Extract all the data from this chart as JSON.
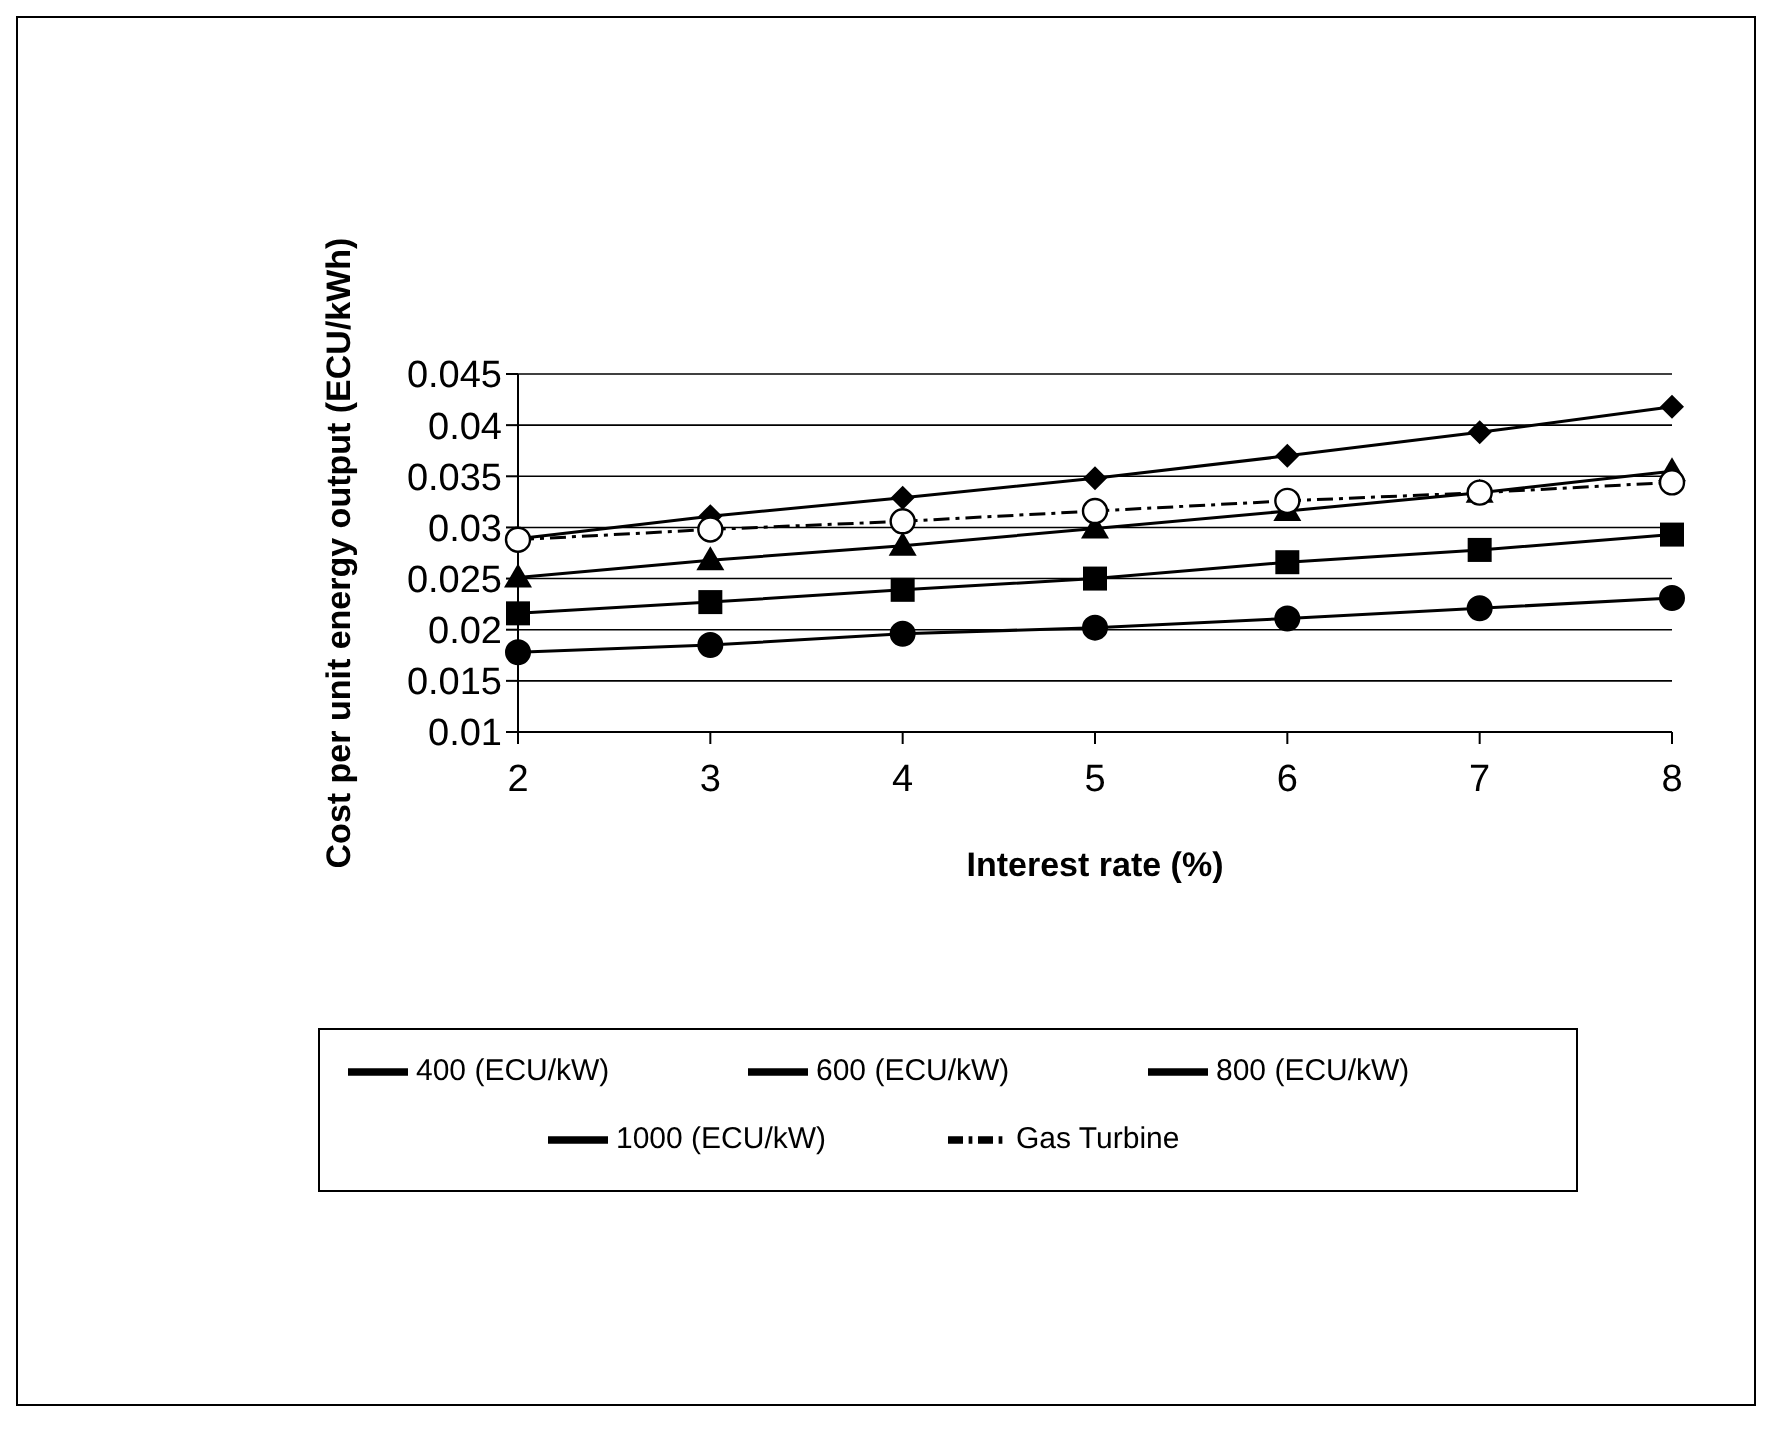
{
  "chart_data": {
    "type": "line",
    "xlabel": "Interest rate (%)",
    "ylabel": "Cost per unit energy output (ECU/kWh)",
    "categories": [
      "2",
      "3",
      "4",
      "5",
      "6",
      "7",
      "8"
    ],
    "series": [
      {
        "name": "400 (ECU/kW)",
        "color": "#000000",
        "marker": "circle",
        "line_style": "solid",
        "values": [
          0.0178,
          0.0185,
          0.0196,
          0.0202,
          0.0211,
          0.0221,
          0.0231
        ]
      },
      {
        "name": "600 (ECU/kW)",
        "color": "#000000",
        "marker": "square",
        "line_style": "solid",
        "values": [
          0.0216,
          0.0227,
          0.0239,
          0.025,
          0.0266,
          0.0278,
          0.0293
        ]
      },
      {
        "name": "800 (ECU/kW)",
        "color": "#000000",
        "marker": "triangle",
        "line_style": "solid",
        "values": [
          0.0251,
          0.0268,
          0.0282,
          0.0299,
          0.0316,
          0.0334,
          0.0355
        ]
      },
      {
        "name": "1000 (ECU/kW)",
        "color": "#000000",
        "marker": "diamond",
        "line_style": "solid",
        "values": [
          0.0289,
          0.0311,
          0.0329,
          0.0348,
          0.037,
          0.0393,
          0.0418
        ]
      },
      {
        "name": "Gas Turbine",
        "color": "#000000",
        "marker": "circle-open",
        "line_style": "dashed",
        "values": [
          0.0288,
          0.0298,
          0.0306,
          0.0316,
          0.0326,
          0.0334,
          0.0344
        ]
      }
    ],
    "ylim": [
      0.01,
      0.045
    ],
    "yticks": [
      0.01,
      0.015,
      0.02,
      0.025,
      0.03,
      0.035,
      0.04,
      0.045
    ],
    "grid": "y",
    "legend": "bottom"
  }
}
